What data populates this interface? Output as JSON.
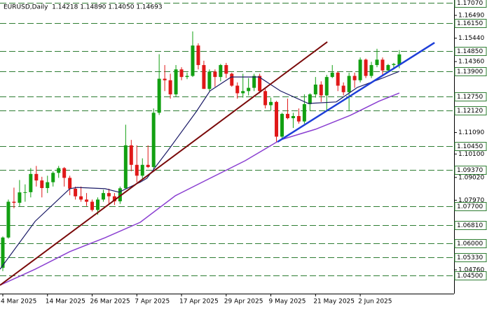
{
  "chart_data": {
    "type": "candlestick",
    "title": "EURUSD,Daily  1.14218 1.14890 1.14050 1.14693",
    "up_color": "#12a012",
    "down_color": "#e01818",
    "level_color": "#2e7d32",
    "categories": [
      "4 Mar 2025",
      null,
      null,
      null,
      null,
      null,
      null,
      null,
      "14 Mar 2025",
      null,
      null,
      null,
      null,
      null,
      null,
      null,
      "26 Mar 2025",
      null,
      null,
      null,
      null,
      null,
      null,
      null,
      "7 Apr 2025",
      null,
      null,
      null,
      null,
      null,
      null,
      null,
      "17 Apr 2025",
      null,
      null,
      null,
      null,
      null,
      null,
      null,
      "29 Apr 2025",
      null,
      null,
      null,
      null,
      null,
      null,
      null,
      "9 May 2025",
      null,
      null,
      null,
      null,
      null,
      null,
      null,
      "21 May 2025",
      null,
      null,
      null,
      null,
      null,
      null,
      null,
      "2 Jun 2025",
      null,
      null,
      null,
      null,
      null,
      null,
      null
    ],
    "open": [
      1.0485,
      1.0625,
      1.079,
      1.0785,
      1.0833,
      1.0834,
      1.0918,
      1.0888,
      1.0853,
      1.088,
      1.0923,
      1.0945,
      1.09,
      1.085,
      1.0815,
      1.08,
      1.079,
      1.0752,
      1.08,
      1.083,
      1.0815,
      1.0792,
      1.0852,
      1.105,
      1.096,
      1.091,
      1.096,
      1.095,
      1.12,
      1.1357,
      1.135,
      1.1285,
      1.14,
      1.1365,
      1.137,
      1.151,
      1.142,
      1.131,
      1.139,
      1.1365,
      1.142,
      1.138,
      1.1325,
      1.129,
      1.13,
      1.1315,
      1.137,
      1.13,
      1.1235,
      1.125,
      1.109,
      1.1195,
      1.1175,
      1.1185,
      1.116,
      1.124,
      1.1285,
      1.133,
      1.128,
      1.1365,
      1.1385,
      1.1325,
      1.1295,
      1.137,
      1.135,
      1.1445,
      1.137,
      1.142,
      1.1445,
      1.1395,
      1.142,
      1.14218
    ],
    "high": [
      1.063,
      1.08,
      1.0855,
      1.089,
      1.087,
      1.0945,
      1.0955,
      1.0905,
      1.091,
      1.093,
      1.0955,
      1.095,
      1.091,
      1.086,
      1.086,
      1.083,
      1.08,
      1.081,
      1.0845,
      1.085,
      1.083,
      1.086,
      1.1145,
      1.1075,
      1.105,
      1.099,
      1.105,
      1.122,
      1.147,
      1.142,
      1.138,
      1.142,
      1.141,
      1.1385,
      1.1575,
      1.152,
      1.144,
      1.14,
      1.14,
      1.1425,
      1.143,
      1.1385,
      1.134,
      1.138,
      1.136,
      1.138,
      1.138,
      1.131,
      1.127,
      1.1255,
      1.12,
      1.1265,
      1.12,
      1.122,
      1.1285,
      1.129,
      1.1365,
      1.1345,
      1.1375,
      1.142,
      1.139,
      1.134,
      1.1385,
      1.1385,
      1.1455,
      1.145,
      1.1435,
      1.1495,
      1.1455,
      1.1425,
      1.143,
      1.1489
    ],
    "low": [
      1.047,
      1.062,
      1.076,
      1.077,
      1.079,
      1.081,
      1.086,
      1.081,
      1.083,
      1.086,
      1.09,
      1.086,
      1.082,
      1.08,
      1.079,
      1.077,
      1.0745,
      1.073,
      1.079,
      1.078,
      1.0775,
      1.078,
      1.085,
      1.093,
      1.088,
      1.089,
      1.0945,
      1.094,
      1.119,
      1.13,
      1.1265,
      1.1275,
      1.135,
      1.1355,
      1.1365,
      1.14,
      1.131,
      1.13,
      1.132,
      1.1345,
      1.136,
      1.132,
      1.1265,
      1.127,
      1.128,
      1.13,
      1.129,
      1.122,
      1.121,
      1.1065,
      1.108,
      1.117,
      1.113,
      1.115,
      1.115,
      1.121,
      1.127,
      1.125,
      1.121,
      1.136,
      1.13,
      1.128,
      1.121,
      1.1315,
      1.134,
      1.136,
      1.136,
      1.141,
      1.137,
      1.1385,
      1.14,
      1.1405
    ],
    "close": [
      1.0625,
      1.079,
      1.0785,
      1.0833,
      1.0834,
      1.0918,
      1.0888,
      1.0853,
      1.088,
      1.0923,
      1.0945,
      1.09,
      1.085,
      1.0815,
      1.08,
      1.079,
      1.0752,
      1.08,
      1.083,
      1.0815,
      1.0792,
      1.0852,
      1.105,
      1.096,
      1.091,
      1.096,
      1.095,
      1.12,
      1.1357,
      1.135,
      1.1285,
      1.14,
      1.1365,
      1.137,
      1.151,
      1.142,
      1.131,
      1.139,
      1.1365,
      1.142,
      1.138,
      1.1325,
      1.129,
      1.13,
      1.1315,
      1.137,
      1.13,
      1.1235,
      1.125,
      1.109,
      1.1195,
      1.1175,
      1.1185,
      1.116,
      1.124,
      1.1285,
      1.133,
      1.128,
      1.1365,
      1.1385,
      1.1325,
      1.1295,
      1.137,
      1.135,
      1.1445,
      1.137,
      1.142,
      1.1445,
      1.1395,
      1.142,
      1.1425,
      1.14693
    ],
    "overlays": [
      {
        "color": "#1a1a66",
        "width": 1.2,
        "x": [
          -0.5,
          5.8,
          12,
          13.3,
          18.3,
          20.8,
          24.6,
          25.8,
          29.6,
          34.6,
          37.1,
          40.9,
          45.9,
          49.7,
          54.7,
          59.7,
          63.5,
          67.9,
          71
        ],
        "values": [
          1.0479,
          1.07,
          1.085,
          1.0856,
          1.085,
          1.0834,
          1.088,
          1.0898,
          1.1027,
          1.1204,
          1.1301,
          1.1365,
          1.1365,
          1.1301,
          1.1243,
          1.125,
          1.1317,
          1.1359,
          1.1391
        ]
      },
      {
        "color": "#8a3fd1",
        "width": 1.5,
        "x": [
          -0.5,
          5.8,
          12,
          18.3,
          24.6,
          30.9,
          37.1,
          43.4,
          49.7,
          56,
          62.2,
          67.3,
          71
        ],
        "values": [
          1.0405,
          1.0479,
          1.056,
          1.0624,
          1.0695,
          1.0818,
          1.0898,
          1.0979,
          1.1075,
          1.1124,
          1.1188,
          1.1253,
          1.1291
        ]
      },
      {
        "color": "#7a0a0a",
        "width": 2,
        "x": [
          -0.5,
          58.1
        ],
        "values": [
          1.0405,
          1.1527
        ]
      },
      {
        "color": "#1e3fd8",
        "width": 2.5,
        "x": [
          49.2,
          77.3
        ],
        "values": [
          1.1066,
          1.1523
        ]
      }
    ],
    "levels": [
      {
        "value": 1.1707,
        "label": "1.17070"
      },
      {
        "value": 1.1615,
        "label": "1.16150"
      },
      {
        "value": 1.1485,
        "label": "1.14850"
      },
      {
        "value": 1.139,
        "label": "1.13900"
      },
      {
        "value": 1.1275,
        "label": "1.12750"
      },
      {
        "value": 1.1212,
        "label": "1.12120"
      },
      {
        "value": 1.1045,
        "label": "1.10450"
      },
      {
        "value": 1.0937,
        "label": "1.09370"
      },
      {
        "value": 1.077,
        "label": "1.07700"
      },
      {
        "value": 1.0681,
        "label": "1.06810"
      },
      {
        "value": 1.06,
        "label": "1.06000"
      },
      {
        "value": 1.0533,
        "label": "1.05330"
      },
      {
        "value": 1.045,
        "label": "1.04500"
      }
    ],
    "yticks": [
      {
        "value": 1.1649,
        "label": "1.16490"
      },
      {
        "value": 1.1544,
        "label": "1.15440"
      },
      {
        "value": 1.1436,
        "label": "1.14360"
      },
      {
        "value": 1.1109,
        "label": "1.11090"
      },
      {
        "value": 1.101,
        "label": "1.10100"
      },
      {
        "value": 1.0902,
        "label": "1.09020"
      },
      {
        "value": 1.0797,
        "label": "1.07970"
      },
      {
        "value": 1.0584,
        "label": "1.05840"
      },
      {
        "value": 1.0476,
        "label": "1.04760"
      }
    ],
    "ylim": [
      1.03664,
      1.17199
    ]
  }
}
